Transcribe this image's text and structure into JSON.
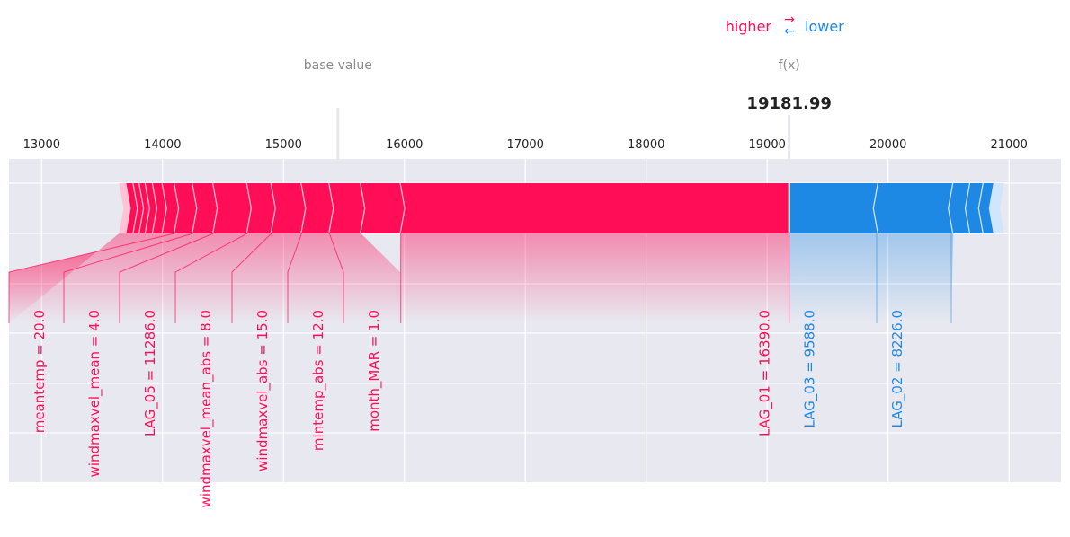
{
  "chart_data": {
    "type": "force",
    "legend": {
      "higher": "higher",
      "lower": "lower"
    },
    "base_value_label": "base value",
    "fx_label": "f(x)",
    "fx_value": 19181.99,
    "fx_value_text": "19181.99",
    "base_value": 15450,
    "xlim": [
      12730,
      21430
    ],
    "x_ticks": [
      13000,
      14000,
      15000,
      16000,
      17000,
      18000,
      19000,
      20000,
      21000
    ],
    "x_tick_labels": [
      "13000",
      "14000",
      "15000",
      "16000",
      "17000",
      "18000",
      "19000",
      "20000",
      "21000"
    ],
    "grid": true,
    "colors": {
      "positive": "#ff0d57",
      "negative": "#1e88e5",
      "background": "#e8e9f0",
      "positive_light": "#ffc3d5",
      "negative_light": "#d1e6fa"
    },
    "positive_segments": [
      {
        "start": 13640,
        "end": 13700
      },
      {
        "start": 13700,
        "end": 13760
      },
      {
        "start": 13760,
        "end": 13810
      },
      {
        "start": 13810,
        "end": 13860
      },
      {
        "start": 13860,
        "end": 13920
      },
      {
        "start": 13920,
        "end": 14000
      },
      {
        "start": 14000,
        "end": 14100
      },
      {
        "start": 14100,
        "end": 14250,
        "feature": "meantemp = 20.0"
      },
      {
        "start": 14250,
        "end": 14420,
        "feature": "windmaxvel_mean = 4.0"
      },
      {
        "start": 14420,
        "end": 14700,
        "feature": "LAG_05 = 11286.0"
      },
      {
        "start": 14700,
        "end": 14900,
        "feature": "windmaxvel_mean_abs = 8.0"
      },
      {
        "start": 14900,
        "end": 15150,
        "feature": "windmaxvel_abs = 15.0"
      },
      {
        "start": 15150,
        "end": 15380,
        "feature": "mintemp_abs = 12.0"
      },
      {
        "start": 15380,
        "end": 15640,
        "feature": "month_MAR = 1.0"
      },
      {
        "start": 15640,
        "end": 15970
      },
      {
        "start": 15970,
        "end": 19181.99,
        "feature": "LAG_01 = 16390.0"
      }
    ],
    "negative_segments": [
      {
        "start": 19181.99,
        "end": 19920,
        "feature": "LAG_03 = 9588.0"
      },
      {
        "start": 19920,
        "end": 20540,
        "feature": "LAG_02 = 8226.0"
      },
      {
        "start": 20540,
        "end": 20680
      },
      {
        "start": 20680,
        "end": 20790
      },
      {
        "start": 20790,
        "end": 20880
      },
      {
        "start": 20880,
        "end": 20960
      }
    ],
    "labels": [
      {
        "text": "meantemp = 20.0",
        "side": "positive",
        "value": 14100
      },
      {
        "text": "windmaxvel_mean = 4.0",
        "side": "positive",
        "value": 14250
      },
      {
        "text": "LAG_05 = 11286.0",
        "side": "positive",
        "value": 14420
      },
      {
        "text": "windmaxvel_mean_abs = 8.0",
        "side": "positive",
        "value": 14700
      },
      {
        "text": "windmaxvel_abs = 15.0",
        "side": "positive",
        "value": 14900
      },
      {
        "text": "mintemp_abs = 12.0",
        "side": "positive",
        "value": 15150
      },
      {
        "text": "month_MAR = 1.0",
        "side": "positive",
        "value": 15380
      },
      {
        "text": "LAG_01 = 16390.0",
        "side": "positive",
        "value": 15970
      },
      {
        "text": "LAG_03 = 9588.0",
        "side": "negative",
        "value": 19920
      },
      {
        "text": "LAG_02 = 8226.0",
        "side": "negative",
        "value": 20540
      }
    ]
  }
}
